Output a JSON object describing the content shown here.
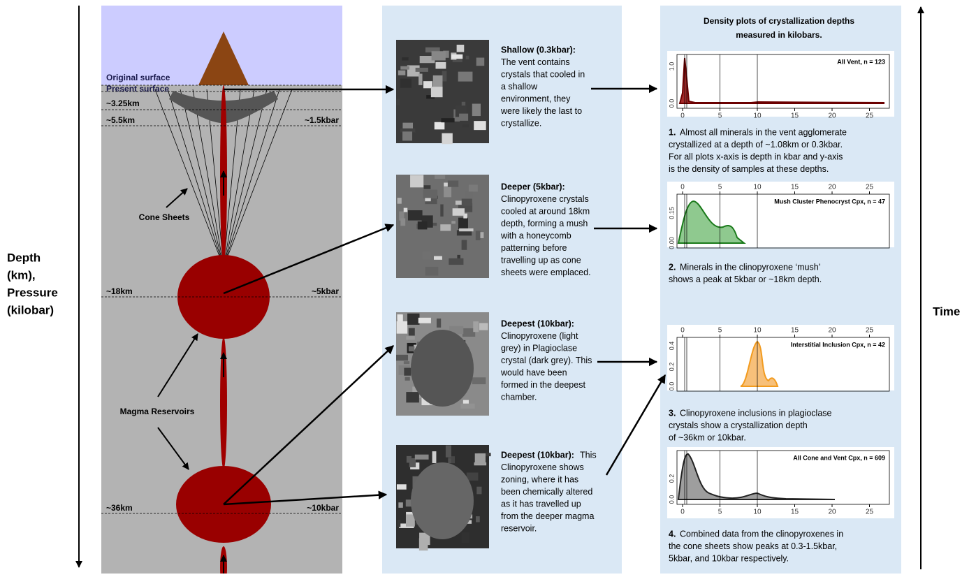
{
  "axis_left": {
    "label": [
      "Depth",
      "(km),",
      "Pressure",
      "(kilobar)"
    ]
  },
  "axis_right": {
    "label": "Time"
  },
  "cross_section": {
    "levels": [
      {
        "left": "Original surface"
      },
      {
        "left": "Present surface"
      },
      {
        "left": "~3.25km"
      },
      {
        "left": "~5.5km",
        "right": "~1.5kbar"
      },
      {
        "left": "~18km",
        "right": "~5kbar"
      },
      {
        "left": "~36km",
        "right": "~10kbar"
      }
    ],
    "cone_sheets": "Cone Sheets",
    "magma_reservoirs": "Magma Reservoirs"
  },
  "samples": [
    {
      "heading": "Shallow (0.3kbar):",
      "lines": [
        "The vent contains",
        "crystals that cooled in",
        "a shallow",
        "environment, they",
        "were likely the last to",
        "crystallize."
      ]
    },
    {
      "heading": "Deeper (5kbar):",
      "lines": [
        "Clinopyroxene crystals",
        "cooled at around 18km",
        "depth, forming a mush",
        "with a honeycomb",
        "patterning before",
        "travelling up as cone",
        "sheets were emplaced."
      ]
    },
    {
      "heading": "Deepest (10kbar):",
      "lines": [
        "Clinopyroxene (light",
        "grey) in Plagioclase",
        "crystal (dark grey). This",
        "would have been",
        "formed in the deepest",
        "chamber."
      ]
    },
    {
      "heading": "Deepest (10kbar):",
      "heading_tail": "This",
      "lines": [
        "Clinopyroxene shows",
        "zoning, where it has",
        "been chemically altered",
        "as it has travelled up",
        "from the deeper magma",
        "reservoir."
      ]
    }
  ],
  "plots": {
    "title": [
      "Density plots of crystallization depths",
      "measured in kilobars."
    ],
    "items": [
      {
        "legend": "All Vent, n = 123",
        "xticks": [
          "0",
          "5",
          "10",
          "15",
          "20",
          "25"
        ],
        "yticks": [
          "0.0",
          "1.0"
        ],
        "number": "1.",
        "caption": [
          "Almost all minerals in the vent agglomerate",
          "crystallized at a depth of ~1.08km or 0.3kbar.",
          "For all plots x-axis is depth in kbar and y-axis",
          "is the density of samples at these depths."
        ]
      },
      {
        "legend": "Mush Cluster Phenocryst Cpx, n = 47",
        "xticks": [
          "0",
          "5",
          "10",
          "15",
          "20",
          "25"
        ],
        "yticks": [
          "0.00",
          "0.15"
        ],
        "number": "2.",
        "caption": [
          "Minerals in the clinopyroxene ‘mush’",
          "shows a peak at 5kbar or ~18km depth."
        ]
      },
      {
        "legend": "Interstitial Inclusion Cpx, n = 42",
        "xticks": [
          "0",
          "5",
          "10",
          "15",
          "20",
          "25"
        ],
        "yticks": [
          "0.0",
          "0.2",
          "0.4"
        ],
        "number": "3.",
        "caption": [
          "Clinopyroxene inclusions in plagioclase",
          "crystals show a crystallization depth",
          "of ~36km or 10kbar."
        ]
      },
      {
        "legend": "All Cone and Vent Cpx, n = 609",
        "xticks": [
          "0",
          "5",
          "10",
          "15",
          "20",
          "25"
        ],
        "yticks": [
          "0.0",
          "0.2"
        ],
        "number": "4.",
        "caption": [
          "Combined data from the clinopyroxenes in",
          "the cone sheets show peaks at 0.3-1.5kbar,",
          "5kbar, and 10kbar respectively."
        ]
      }
    ]
  }
}
